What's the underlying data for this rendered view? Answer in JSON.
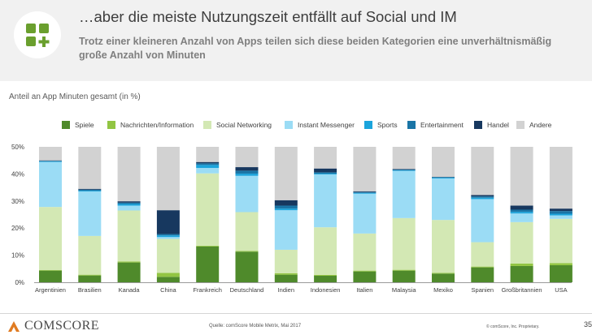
{
  "header": {
    "title": "…aber die meiste Nutzungszeit entfällt auf Social und IM",
    "subtitle": "Trotz einer kleineren Anzahl von Apps teilen sich diese beiden Kategorien eine unverhältnismäßig große Anzahl von Minuten",
    "icon": "apps-plus-icon",
    "accent_color": "#6a9f2e"
  },
  "chart_data": {
    "type": "bar",
    "stacked": true,
    "ylabel": "Anteil an App Minuten gesamt (in %)",
    "ylim": [
      0,
      50
    ],
    "yticks": [
      "0%",
      "10%",
      "20%",
      "30%",
      "40%",
      "50%"
    ],
    "grid": false,
    "legend_position": "top",
    "categories": [
      "Argentinien",
      "Brasilien",
      "Kanada",
      "China",
      "Frankreich",
      "Deutschland",
      "Indien",
      "Indonesien",
      "Italien",
      "Malaysia",
      "Mexiko",
      "Spanien",
      "Großbritannien",
      "USA"
    ],
    "series": [
      {
        "name": "Spiele",
        "color": "#4f8a2b",
        "values": [
          4.3,
          2.5,
          7.3,
          2.0,
          13.2,
          11.3,
          2.8,
          2.4,
          4.0,
          4.3,
          3.2,
          5.5,
          6.0,
          6.3
        ]
      },
      {
        "name": "Nachrichten/Information",
        "color": "#92c543",
        "values": [
          0.2,
          0.3,
          0.4,
          1.5,
          0.3,
          0.3,
          0.5,
          0.3,
          0.3,
          0.3,
          0.3,
          0.3,
          0.9,
          0.8
        ]
      },
      {
        "name": "Social Networking",
        "color": "#d3e8b4",
        "values": [
          23.3,
          14.3,
          18.8,
          12.5,
          26.7,
          14.3,
          8.7,
          17.6,
          13.7,
          19.1,
          19.5,
          9.0,
          15.3,
          16.3
        ]
      },
      {
        "name": "Instant Messenger",
        "color": "#9bdcf5",
        "values": [
          16.6,
          16.4,
          1.8,
          0.7,
          2.0,
          13.4,
          14.6,
          19.5,
          14.7,
          17.4,
          15.3,
          15.9,
          3.2,
          1.3
        ]
      },
      {
        "name": "Sports",
        "color": "#1ba4dc",
        "values": [
          0.3,
          0.3,
          0.6,
          0.6,
          1.1,
          0.8,
          0.6,
          0.3,
          0.3,
          0.2,
          0.3,
          0.5,
          0.6,
          0.6
        ]
      },
      {
        "name": "Entertainment",
        "color": "#1a75a6",
        "values": [
          0.1,
          0.4,
          0.5,
          0.5,
          0.6,
          1.1,
          1.1,
          0.5,
          0.3,
          0.3,
          0.2,
          0.5,
          0.8,
          1.0
        ]
      },
      {
        "name": "Handel",
        "color": "#17385f",
        "values": [
          0.2,
          0.3,
          0.5,
          8.8,
          0.5,
          1.3,
          2.0,
          1.4,
          0.3,
          0.2,
          0.1,
          0.5,
          1.5,
          0.9
        ]
      },
      {
        "name": "Andere",
        "color": "#d2d2d2",
        "values": [
          5.0,
          15.5,
          20.1,
          23.4,
          5.6,
          7.5,
          19.7,
          8.0,
          16.4,
          8.2,
          11.1,
          17.8,
          21.7,
          22.8
        ]
      }
    ]
  },
  "footer": {
    "brand": "comScore",
    "source": "Quelle: comScore Mobile Metrix, Mai 2017",
    "copyright": "© comScore, Inc. Proprietary.",
    "page": "35"
  }
}
